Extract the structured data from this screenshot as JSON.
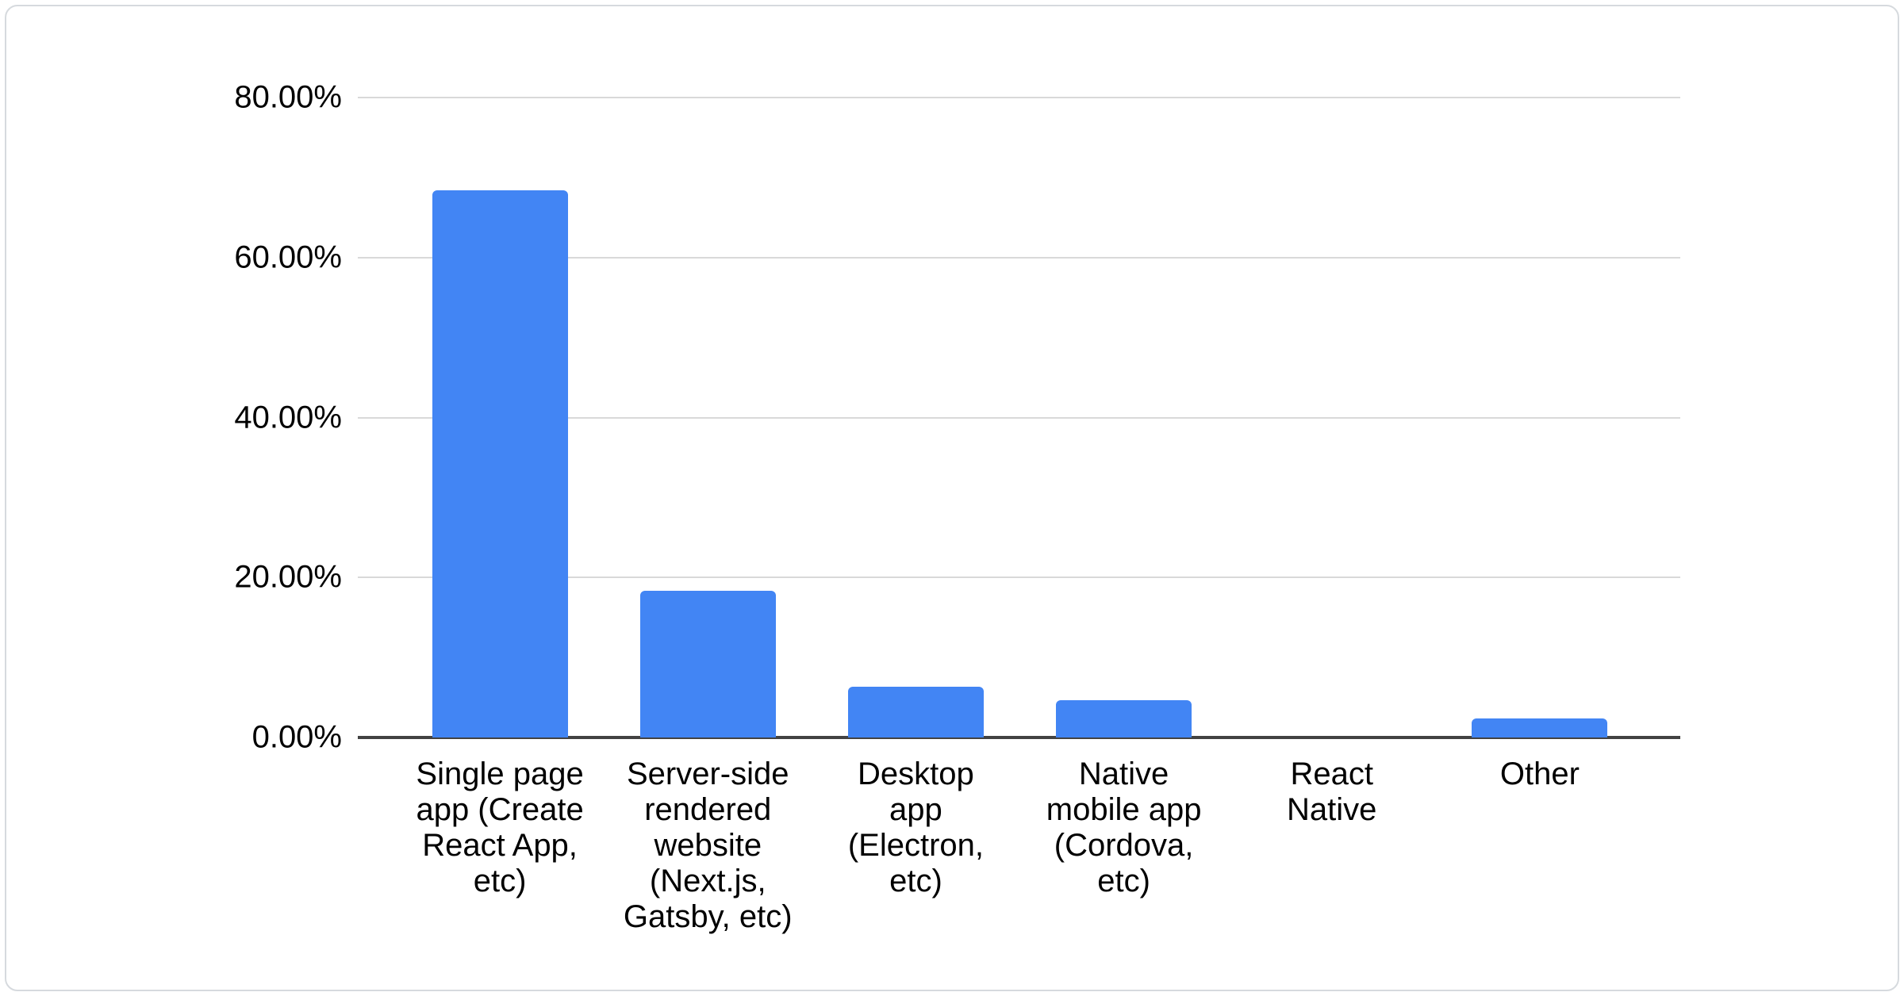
{
  "chart_data": {
    "type": "bar",
    "title": "",
    "xlabel": "",
    "ylabel": "",
    "categories": [
      "Single page app (Create React App, etc)",
      "Server-side rendered website (Next.js, Gatsby, etc)",
      "Desktop app (Electron, etc)",
      "Native mobile app (Cordova, etc)",
      "React Native",
      "Other"
    ],
    "category_display": [
      "Single page\napp (Create\nReact App,\netc)",
      "Server-side\nrendered\nwebsite\n(Next.js,\nGatsby, etc)",
      "Desktop\napp\n(Electron,\netc)",
      "Native\nmobile app\n(Cordova,\netc)",
      "React\nNative",
      "Other"
    ],
    "values": [
      68.4,
      18.3,
      6.3,
      4.7,
      0,
      2.4
    ],
    "unit": "%",
    "ylim": [
      0,
      80
    ],
    "yticks": [
      0,
      20,
      40,
      60,
      80
    ],
    "ytick_labels": [
      "0.00%",
      "20.00%",
      "40.00%",
      "60.00%",
      "80.00%"
    ],
    "grid": true,
    "legend": false,
    "bar_color": "#4285f4",
    "gridline_color": "#d9d9d9",
    "baseline_color": "#424242"
  }
}
